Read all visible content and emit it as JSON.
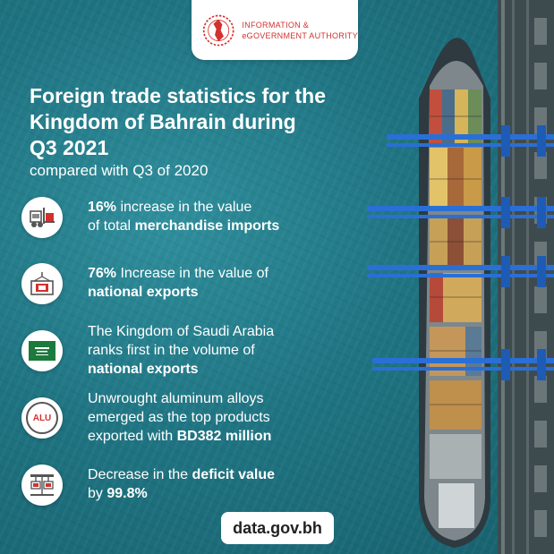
{
  "header": {
    "org_line1": "INFORMATION &",
    "org_line2": "eGOVERNMENT AUTHORITY"
  },
  "title": {
    "line1": "Foreign trade statistics for the",
    "line2": "Kingdom of Bahrain during",
    "line3": "Q3 2021",
    "subtitle": "compared with Q3 of 2020"
  },
  "items": [
    {
      "icon": "forklift-icon",
      "line1_bold": "16%",
      "line1_rest": " increase in the value",
      "line2_pre": "of total ",
      "line2_bold": "merchandise imports"
    },
    {
      "icon": "container-icon",
      "line1_bold": "76%",
      "line1_rest": " Increase in the value of",
      "line2_bold": "national exports"
    },
    {
      "icon": "saudi-flag-icon",
      "line1": "The Kingdom of Saudi Arabia",
      "line2": "ranks first in the volume of",
      "line3_bold": "national exports"
    },
    {
      "icon": "aluminum-icon",
      "icon_text": "ALU",
      "line1": "Unwrought aluminum alloys",
      "line2": "emerged as the top products",
      "line3_pre": "exported with ",
      "line3_bold": "BD382 million"
    },
    {
      "icon": "scale-icon",
      "line1_pre": "Decrease in the ",
      "line1_bold": "deficit value",
      "line2_pre": "by ",
      "line2_bold": "99.8%"
    }
  ],
  "footer": {
    "url": "data.gov.bh"
  },
  "colors": {
    "brand_red": "#d3312e",
    "sea": "#1f7482",
    "crane_blue": "#2a6fd6"
  }
}
